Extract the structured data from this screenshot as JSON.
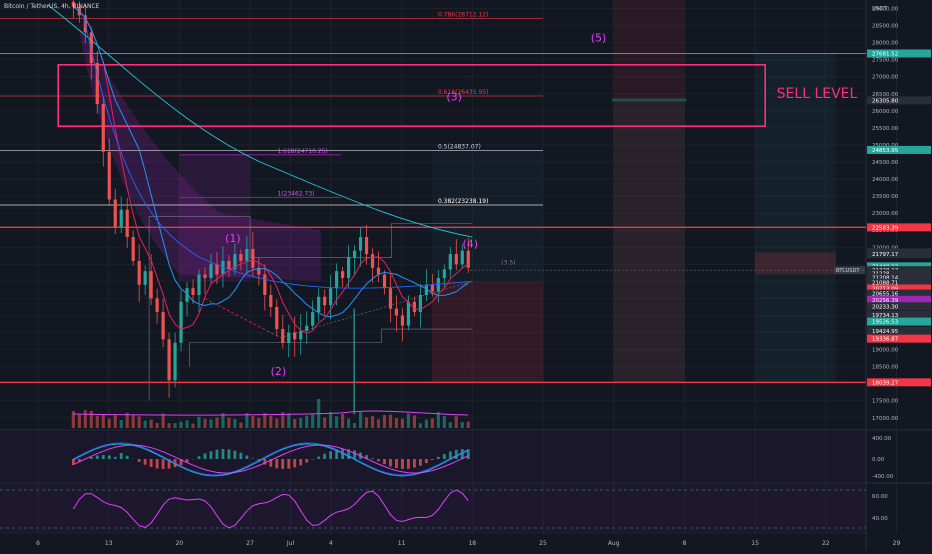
{
  "chart_data": {
    "type": "candlestick",
    "symbol_title": "Bitcoin / TetherUS, 4h, BINANCE",
    "currency": "USDT",
    "ylim": [
      16700,
      29250
    ],
    "price_ticks": [
      29000,
      28500,
      28000,
      27500,
      27000,
      26500,
      26000,
      25500,
      25000,
      24500,
      24000,
      23500,
      23000,
      22500,
      22000,
      21500,
      21000,
      20500,
      20000,
      19500,
      19000,
      18500,
      18000,
      17500,
      17000
    ],
    "x_labels": [
      "6",
      "13",
      "20",
      "27",
      "Jul",
      "4",
      "11",
      "18",
      "25",
      "Aug",
      "8",
      "15",
      "22",
      "29"
    ],
    "fib_levels": [
      {
        "label": "0.786(28712.12)",
        "value": 28712.12,
        "color": "#f23645"
      },
      {
        "label": "0.618(26435.95)",
        "value": 26435.95,
        "color": "#f23645"
      },
      {
        "label": "0.5(24837.07)",
        "value": 24837.07,
        "color": "#d1d4dc"
      },
      {
        "label": "0.382(23238.19)",
        "value": 23238.19,
        "color": "#ffffff"
      }
    ],
    "ext_levels": [
      {
        "label": "1.618(24710.25)",
        "value": 24710
      },
      {
        "label": "1(23462.73)",
        "value": 23462
      }
    ],
    "horizontal_levels": [
      {
        "value": 27681.52,
        "label": "27681.52",
        "color": "#26a69a"
      },
      {
        "value": 22583.39,
        "label": "22583.39",
        "color": "#f23645"
      },
      {
        "value": 18039.27,
        "label": "18039.27",
        "color": "#f23645"
      }
    ],
    "price_tags": [
      {
        "label": "26305.80",
        "value": 26305,
        "color": "#2a2e39"
      },
      {
        "label": "24853.95",
        "value": 24854,
        "color": "#26a69a"
      },
      {
        "label": "21851.00",
        "value": 21851,
        "color": "#2a2e39"
      },
      {
        "label": "21797.17",
        "value": 21797,
        "color": "#2a2e39"
      },
      {
        "label": "21440.12",
        "value": 21440,
        "color": "#26a69a"
      },
      {
        "label": "21328.13",
        "value": 21328,
        "color": "#2a2e39"
      },
      {
        "label": "21228",
        "value": 21228,
        "color": "#2a2e39"
      },
      {
        "label": "21208.14",
        "value": 21108,
        "color": "#2a2e39"
      },
      {
        "label": "21088.71",
        "value": 20960,
        "color": "#2a2e39"
      },
      {
        "label": "20713.09",
        "value": 20790,
        "color": "#f23645"
      },
      {
        "label": "20655.16",
        "value": 20640,
        "color": "#2a2e39"
      },
      {
        "label": "20256.39",
        "value": 20460,
        "color": "#9c27b0"
      },
      {
        "label": "20233.30",
        "value": 20270,
        "color": "#2a2e39"
      },
      {
        "label": "19734.13",
        "value": 20020,
        "color": "#2a2e39"
      },
      {
        "label": "19526.53",
        "value": 19820,
        "color": "#26a69a"
      },
      {
        "label": "19424.95",
        "value": 19550,
        "color": "#2a2e39"
      },
      {
        "label": "19336.87",
        "value": 19320,
        "color": "#f23645"
      }
    ],
    "current_symbol_tag": "BTCUSDT",
    "wave_labels": [
      {
        "text": "(1)",
        "price": 22160,
        "day": 25.3
      },
      {
        "text": "(2)",
        "price": 18250,
        "day": 29.8
      },
      {
        "text": "(3)",
        "price": 26300,
        "day": 47.2
      },
      {
        "text": "(4)",
        "price": 22000,
        "day": 48.8
      },
      {
        "text": "(5)",
        "price": 28040,
        "day": 61.5
      }
    ],
    "annotation": "SELL LEVEL",
    "small_label": "(3.5)",
    "macd_ticks": [
      "400.00",
      "0.00",
      "-400.00"
    ],
    "rsi_ticks": [
      "60.00",
      "40.00"
    ],
    "candles_seed": [
      [
        29200,
        29050
      ],
      [
        29050,
        28800
      ],
      [
        28800,
        28300
      ],
      [
        28300,
        27400
      ],
      [
        27400,
        26200
      ],
      [
        26200,
        24800
      ],
      [
        24800,
        23400
      ],
      [
        23400,
        22600
      ],
      [
        22600,
        23100
      ],
      [
        23100,
        22300
      ],
      [
        22300,
        21600
      ],
      [
        21600,
        20900
      ],
      [
        20900,
        21300
      ],
      [
        21300,
        20500
      ],
      [
        20500,
        20100
      ],
      [
        20100,
        19300
      ],
      [
        19300,
        18100
      ],
      [
        18100,
        19200
      ],
      [
        19200,
        20400
      ],
      [
        20400,
        20800
      ],
      [
        20800,
        20600
      ],
      [
        20600,
        21200
      ],
      [
        21200,
        21100
      ],
      [
        21100,
        21500
      ],
      [
        21500,
        21200
      ],
      [
        21200,
        21600
      ],
      [
        21600,
        21350
      ],
      [
        21350,
        21800
      ],
      [
        21800,
        21600
      ],
      [
        21600,
        21950
      ],
      [
        21950,
        21400
      ],
      [
        21400,
        21200
      ],
      [
        21200,
        20600
      ],
      [
        20600,
        20250
      ],
      [
        20250,
        19600
      ],
      [
        19600,
        19200
      ],
      [
        19200,
        19500
      ],
      [
        19500,
        19300
      ],
      [
        19300,
        19550
      ],
      [
        19550,
        19700
      ],
      [
        19700,
        20100
      ],
      [
        20100,
        20550
      ],
      [
        20550,
        20300
      ],
      [
        20300,
        20800
      ],
      [
        20800,
        21300
      ],
      [
        21300,
        21100
      ],
      [
        21100,
        21700
      ],
      [
        21700,
        21900
      ],
      [
        21900,
        22300
      ],
      [
        22300,
        21800
      ],
      [
        21800,
        21400
      ],
      [
        21400,
        21200
      ],
      [
        21200,
        20800
      ],
      [
        20800,
        20200
      ],
      [
        20200,
        20000
      ],
      [
        20000,
        19700
      ],
      [
        19700,
        20400
      ],
      [
        20400,
        20100
      ],
      [
        20100,
        20600
      ],
      [
        20600,
        20900
      ],
      [
        20900,
        20700
      ],
      [
        20700,
        21100
      ],
      [
        21100,
        21350
      ],
      [
        21350,
        21800
      ],
      [
        21800,
        21500
      ],
      [
        21500,
        21900
      ],
      [
        21900,
        21400
      ]
    ]
  }
}
